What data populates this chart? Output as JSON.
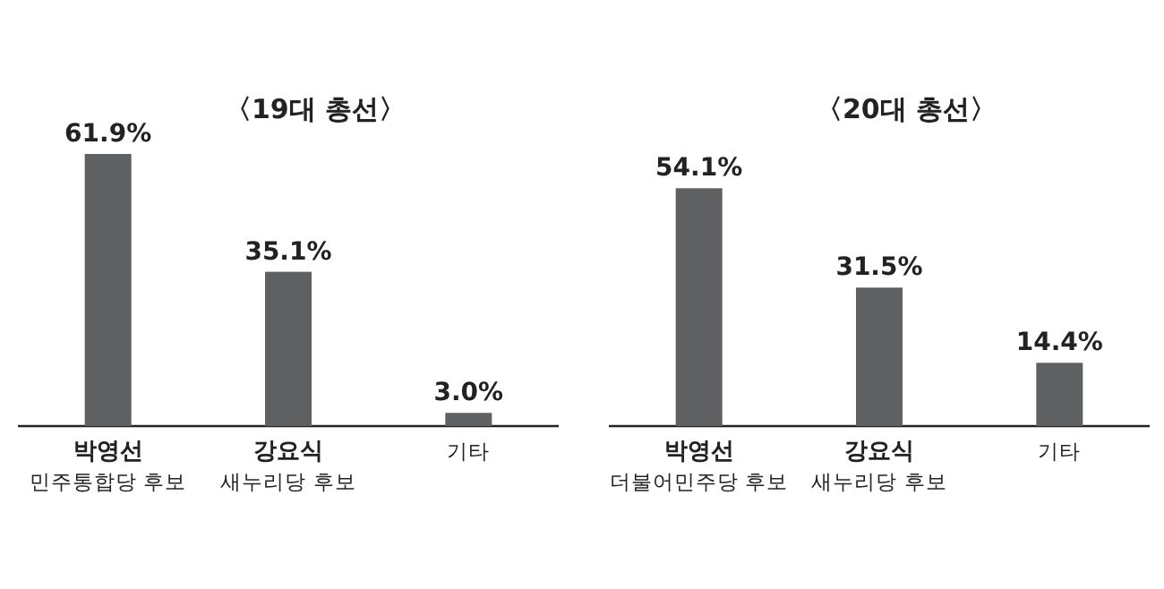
{
  "chart_data": [
    {
      "type": "bar",
      "title": "〈19대 총선〉",
      "categories": [
        "**박영선**\n민주통합당 후보",
        "**강요식**\n새누리당 후보",
        "기타"
      ],
      "series": [
        {
          "color": "#5f6062",
          "values": [
            61.9,
            35.1,
            3.0
          ],
          "value_labels": [
            "61.9%",
            "35.1%",
            "3.0%"
          ]
        }
      ]
    },
    {
      "type": "bar",
      "title": "〈20대 총선〉",
      "categories": [
        "**박영선**\n더불어민주당 후보",
        "**강요식**\n새누리당 후보",
        "기타"
      ],
      "series": [
        {
          "color": "#5f6062",
          "values": [
            54.1,
            31.5,
            14.4
          ],
          "value_labels": [
            "54.1%",
            "31.5%",
            "14.4%"
          ]
        }
      ]
    }
  ]
}
